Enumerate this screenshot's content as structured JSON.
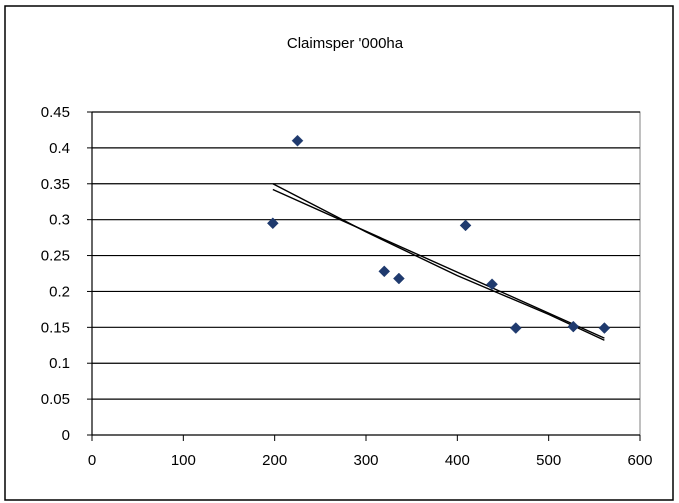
{
  "chart_data": {
    "type": "scatter",
    "title": "Claimsper '000ha",
    "xlabel": "",
    "ylabel": "",
    "xlim": [
      0,
      600
    ],
    "ylim": [
      0,
      0.45
    ],
    "x_ticks": [
      "0",
      "100",
      "200",
      "300",
      "400",
      "500",
      "600"
    ],
    "y_ticks": [
      "0",
      "0.05",
      "0.1",
      "0.15",
      "0.2",
      "0.25",
      "0.3",
      "0.35",
      "0.4",
      "0.45"
    ],
    "y_tick_values": [
      0,
      0.05,
      0.1,
      0.15,
      0.2,
      0.25,
      0.3,
      0.35,
      0.4,
      0.45
    ],
    "x_tick_values": [
      0,
      100,
      200,
      300,
      400,
      500,
      600
    ],
    "grid": "horizontal",
    "legend": "none",
    "series": [
      {
        "points": [
          {
            "x": 198,
            "y": 0.295
          },
          {
            "x": 225,
            "y": 0.41
          },
          {
            "x": 320,
            "y": 0.228
          },
          {
            "x": 336,
            "y": 0.218
          },
          {
            "x": 409,
            "y": 0.292
          },
          {
            "x": 438,
            "y": 0.21
          },
          {
            "x": 464,
            "y": 0.149
          },
          {
            "x": 527,
            "y": 0.151
          },
          {
            "x": 561,
            "y": 0.149
          }
        ],
        "color": "#1f3a6e",
        "marker": "diamond"
      }
    ],
    "trendlines": [
      {
        "kind": "linear",
        "x": [
          198,
          561
        ],
        "y": [
          0.342,
          0.135
        ]
      },
      {
        "kind": "curved",
        "x": [
          198,
          300,
          400,
          500,
          561
        ],
        "y": [
          0.35,
          0.283,
          0.222,
          0.168,
          0.132
        ]
      }
    ]
  }
}
